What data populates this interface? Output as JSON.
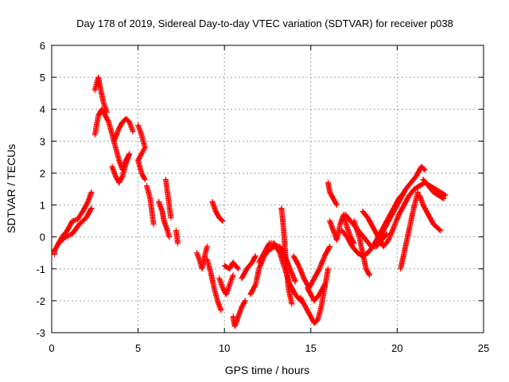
{
  "chart_data": {
    "type": "scatter",
    "title": "Day 178 of 2019, Sidereal Day-to-day VTEC variation (SDTVAR) for receiver p038",
    "xlabel": "GPS time / hours",
    "ylabel": "SDTVAR / TECUs",
    "xlim": [
      0,
      25
    ],
    "ylim": [
      -3,
      6
    ],
    "xticks": [
      "0",
      "5",
      "10",
      "15",
      "20",
      "25"
    ],
    "yticks": [
      "-3",
      "-2",
      "-1",
      "0",
      "1",
      "2",
      "3",
      "4",
      "5",
      "6"
    ],
    "grid": true,
    "marker": "+",
    "color": "#ff0000",
    "series": [
      {
        "name": "SDTVAR",
        "tracks": [
          [
            [
              0.0,
              -0.55
            ],
            [
              0.3,
              -0.3
            ],
            [
              0.6,
              0.0
            ],
            [
              0.9,
              0.2
            ],
            [
              1.2,
              0.5
            ],
            [
              1.5,
              0.55
            ],
            [
              1.8,
              0.8
            ],
            [
              2.1,
              1.1
            ],
            [
              2.3,
              1.4
            ]
          ],
          [
            [
              0.4,
              -0.2
            ],
            [
              0.8,
              0.0
            ],
            [
              1.2,
              0.1
            ],
            [
              1.6,
              0.4
            ],
            [
              2.0,
              0.6
            ],
            [
              2.3,
              0.9
            ]
          ],
          [
            [
              2.5,
              3.2
            ],
            [
              2.7,
              3.8
            ],
            [
              2.9,
              4.0
            ],
            [
              3.1,
              3.8
            ],
            [
              3.3,
              3.6
            ],
            [
              3.5,
              3.2
            ],
            [
              3.7,
              2.8
            ],
            [
              3.9,
              2.4
            ],
            [
              4.1,
              2.1
            ],
            [
              4.3,
              2.4
            ],
            [
              4.5,
              2.6
            ]
          ],
          [
            [
              2.5,
              4.6
            ],
            [
              2.7,
              5.0
            ],
            [
              2.8,
              4.7
            ],
            [
              3.0,
              4.2
            ],
            [
              3.2,
              3.9
            ]
          ],
          [
            [
              3.5,
              2.2
            ],
            [
              3.7,
              1.9
            ],
            [
              3.9,
              1.7
            ],
            [
              4.1,
              1.9
            ],
            [
              4.3,
              2.3
            ],
            [
              4.5,
              2.6
            ]
          ],
          [
            [
              3.6,
              3.0
            ],
            [
              3.9,
              3.4
            ],
            [
              4.1,
              3.6
            ],
            [
              4.3,
              3.7
            ],
            [
              4.5,
              3.6
            ],
            [
              4.7,
              3.3
            ]
          ],
          [
            [
              5.0,
              3.5
            ],
            [
              5.2,
              3.2
            ],
            [
              5.4,
              2.8
            ],
            [
              5.0,
              2.4
            ],
            [
              5.2,
              2.0
            ],
            [
              5.4,
              1.8
            ]
          ],
          [
            [
              5.5,
              1.6
            ],
            [
              5.7,
              1.2
            ],
            [
              5.8,
              0.8
            ],
            [
              5.9,
              0.4
            ]
          ],
          [
            [
              6.2,
              1.1
            ],
            [
              6.4,
              0.8
            ],
            [
              6.5,
              0.5
            ],
            [
              6.7,
              0.2
            ],
            [
              6.8,
              0.0
            ]
          ],
          [
            [
              6.6,
              1.8
            ],
            [
              6.7,
              1.4
            ],
            [
              6.8,
              1.0
            ],
            [
              6.9,
              0.6
            ]
          ],
          [
            [
              7.2,
              0.2
            ],
            [
              7.3,
              -0.2
            ]
          ],
          [
            [
              8.4,
              -0.5
            ],
            [
              8.6,
              -0.8
            ],
            [
              8.7,
              -1.0
            ],
            [
              8.9,
              -0.5
            ],
            [
              9.0,
              -0.3
            ]
          ],
          [
            [
              9.0,
              -0.7
            ],
            [
              9.2,
              -1.1
            ],
            [
              9.4,
              -1.6
            ],
            [
              9.6,
              -2.0
            ],
            [
              9.8,
              -2.3
            ]
          ],
          [
            [
              9.3,
              1.1
            ],
            [
              9.5,
              0.8
            ],
            [
              9.7,
              0.6
            ],
            [
              9.9,
              0.5
            ]
          ],
          [
            [
              9.7,
              -1.3
            ],
            [
              9.9,
              -1.6
            ],
            [
              10.1,
              -1.8
            ],
            [
              10.3,
              -1.5
            ],
            [
              10.5,
              -1.2
            ]
          ],
          [
            [
              10.0,
              -0.9
            ],
            [
              10.3,
              -1.0
            ],
            [
              10.5,
              -0.8
            ],
            [
              10.8,
              -1.0
            ]
          ],
          [
            [
              10.5,
              -2.5
            ],
            [
              10.6,
              -2.8
            ],
            [
              10.8,
              -2.5
            ],
            [
              11.0,
              -2.2
            ],
            [
              11.2,
              -2.0
            ]
          ],
          [
            [
              11.0,
              -1.3
            ],
            [
              11.3,
              -1.0
            ],
            [
              11.6,
              -0.8
            ],
            [
              11.8,
              -0.6
            ]
          ],
          [
            [
              11.5,
              -1.8
            ],
            [
              11.8,
              -1.5
            ],
            [
              12.0,
              -1.0
            ],
            [
              12.3,
              -0.6
            ],
            [
              12.6,
              -0.4
            ],
            [
              12.9,
              -0.3
            ],
            [
              13.2,
              -0.3
            ],
            [
              13.5,
              -0.6
            ],
            [
              13.8,
              -1.0
            ],
            [
              14.1,
              -1.4
            ]
          ],
          [
            [
              12.0,
              -0.8
            ],
            [
              12.3,
              -0.5
            ],
            [
              12.6,
              -0.2
            ],
            [
              12.9,
              -0.2
            ],
            [
              13.2,
              -0.5
            ],
            [
              13.5,
              -1.0
            ],
            [
              13.8,
              -1.5
            ],
            [
              14.1,
              -1.8
            ],
            [
              14.4,
              -2.0
            ]
          ],
          [
            [
              13.3,
              0.9
            ],
            [
              13.4,
              0.4
            ],
            [
              13.5,
              -0.3
            ],
            [
              13.6,
              -1.0
            ],
            [
              13.7,
              -1.6
            ],
            [
              13.9,
              -2.1
            ]
          ],
          [
            [
              14.0,
              -0.6
            ],
            [
              14.3,
              -0.9
            ],
            [
              14.6,
              -1.3
            ],
            [
              14.9,
              -1.6
            ],
            [
              15.2,
              -1.3
            ],
            [
              15.5,
              -1.0
            ],
            [
              15.8,
              -0.6
            ],
            [
              16.1,
              -0.3
            ]
          ],
          [
            [
              14.4,
              -1.9
            ],
            [
              14.7,
              -2.2
            ],
            [
              15.0,
              -2.5
            ],
            [
              15.2,
              -2.7
            ],
            [
              15.4,
              -2.6
            ],
            [
              15.6,
              -2.2
            ],
            [
              15.8,
              -1.6
            ],
            [
              16.0,
              -1.0
            ]
          ],
          [
            [
              14.8,
              -1.6
            ],
            [
              15.0,
              -1.8
            ],
            [
              15.2,
              -2.0
            ],
            [
              15.5,
              -1.8
            ],
            [
              15.8,
              -1.5
            ]
          ],
          [
            [
              16.0,
              1.7
            ],
            [
              16.1,
              1.4
            ],
            [
              16.3,
              1.2
            ],
            [
              16.5,
              1.0
            ]
          ],
          [
            [
              16.1,
              0.5
            ],
            [
              16.3,
              0.2
            ],
            [
              16.5,
              -0.1
            ],
            [
              16.7,
              0.4
            ],
            [
              16.9,
              0.7
            ],
            [
              17.1,
              0.3
            ],
            [
              17.3,
              0.0
            ],
            [
              17.5,
              -0.2
            ]
          ],
          [
            [
              16.8,
              0.2
            ],
            [
              17.1,
              0.0
            ],
            [
              17.4,
              -0.3
            ],
            [
              17.7,
              -0.5
            ],
            [
              18.0,
              -0.6
            ],
            [
              18.3,
              -0.5
            ],
            [
              18.6,
              -0.3
            ],
            [
              18.9,
              0.0
            ],
            [
              19.2,
              0.3
            ],
            [
              19.5,
              0.6
            ],
            [
              19.8,
              0.9
            ],
            [
              20.1,
              1.2
            ],
            [
              20.4,
              1.4
            ]
          ],
          [
            [
              17.0,
              0.7
            ],
            [
              17.3,
              0.5
            ],
            [
              17.6,
              0.3
            ],
            [
              17.9,
              0.1
            ],
            [
              18.2,
              -0.1
            ],
            [
              18.5,
              -0.3
            ],
            [
              18.8,
              -0.3
            ],
            [
              19.1,
              -0.1
            ],
            [
              19.4,
              0.1
            ]
          ],
          [
            [
              17.5,
              0.5
            ],
            [
              17.8,
              0.0
            ],
            [
              18.0,
              -0.5
            ],
            [
              18.2,
              -1.0
            ],
            [
              18.4,
              -1.2
            ]
          ],
          [
            [
              18.0,
              0.8
            ],
            [
              18.3,
              0.6
            ],
            [
              18.6,
              0.3
            ],
            [
              18.9,
              0.0
            ],
            [
              19.2,
              -0.3
            ],
            [
              19.5,
              -0.1
            ],
            [
              19.8,
              0.3
            ],
            [
              20.1,
              0.7
            ],
            [
              20.4,
              1.0
            ],
            [
              20.7,
              1.3
            ],
            [
              21.0,
              1.5
            ],
            [
              21.3,
              1.6
            ],
            [
              21.6,
              1.7
            ],
            [
              21.9,
              1.6
            ],
            [
              22.2,
              1.5
            ],
            [
              22.5,
              1.4
            ],
            [
              22.8,
              1.3
            ]
          ],
          [
            [
              19.0,
              0.0
            ],
            [
              19.3,
              0.3
            ],
            [
              19.6,
              0.6
            ],
            [
              19.9,
              0.9
            ],
            [
              20.2,
              1.2
            ],
            [
              20.5,
              1.5
            ],
            [
              20.8,
              1.7
            ],
            [
              21.1,
              1.9
            ],
            [
              21.4,
              2.2
            ],
            [
              21.6,
              2.1
            ]
          ],
          [
            [
              20.2,
              -1.0
            ],
            [
              20.4,
              -0.5
            ],
            [
              20.6,
              0.0
            ],
            [
              20.8,
              0.5
            ],
            [
              21.0,
              1.0
            ],
            [
              21.2,
              1.4
            ]
          ],
          [
            [
              21.3,
              1.3
            ],
            [
              21.5,
              1.0
            ],
            [
              21.7,
              0.8
            ],
            [
              21.9,
              0.6
            ],
            [
              22.1,
              0.4
            ],
            [
              22.3,
              0.3
            ],
            [
              22.5,
              0.2
            ]
          ],
          [
            [
              21.5,
              1.8
            ],
            [
              21.8,
              1.6
            ],
            [
              22.1,
              1.4
            ],
            [
              22.4,
              1.3
            ],
            [
              22.7,
              1.2
            ]
          ]
        ]
      }
    ]
  }
}
